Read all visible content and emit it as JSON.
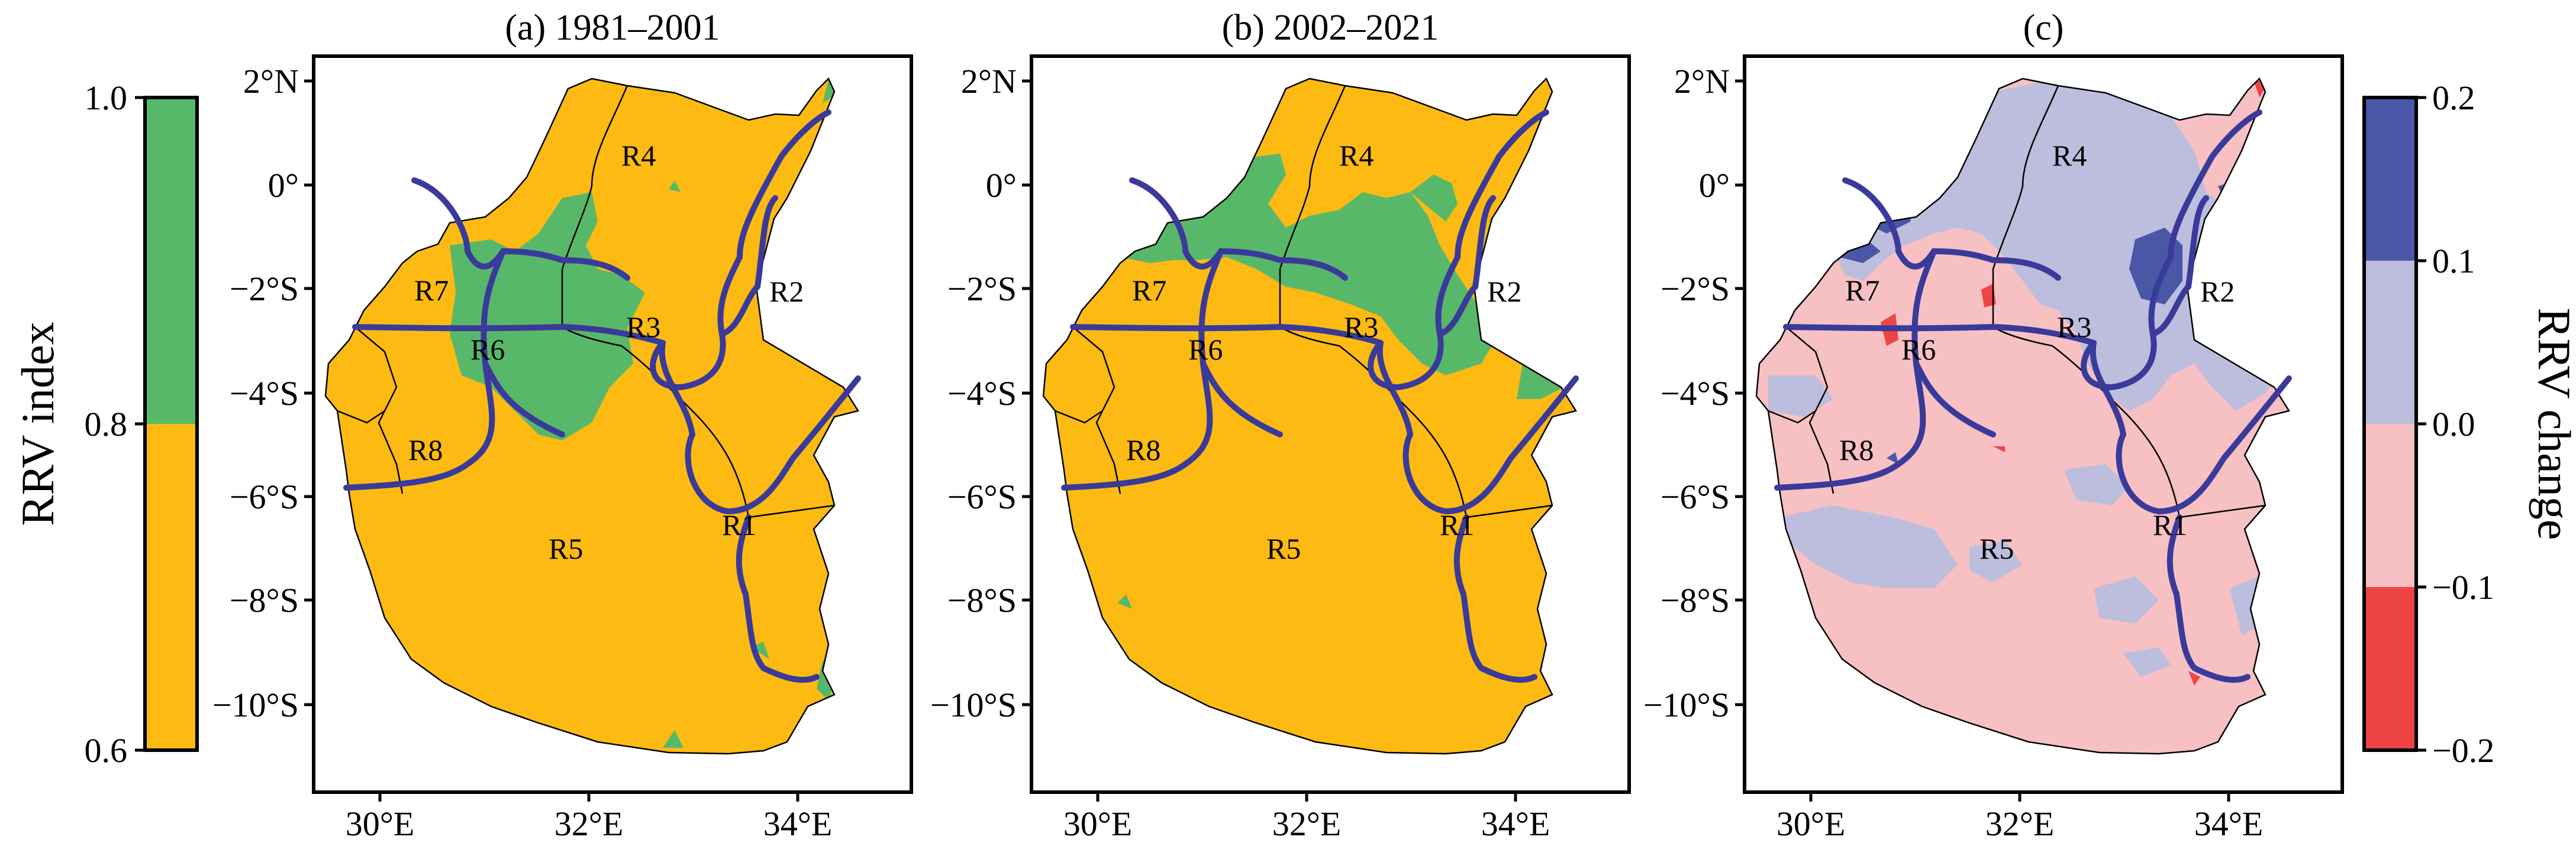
{
  "colors": {
    "rrv_low": "#fdba12",
    "rrv_high": "#58b86a",
    "change_neg_strong": "#ef4446",
    "change_neg": "#f7c0c3",
    "change_pos": "#bdbddd",
    "change_pos_strong": "#4a56a6",
    "boundary": "#3a3a9a",
    "frame": "#000000"
  },
  "left_colorbar": {
    "label": "RRV index",
    "ticks": [
      "1.0",
      "0.8",
      "0.6"
    ],
    "tick_values": [
      1.0,
      0.8,
      0.6
    ],
    "colors": [
      "#58b86a",
      "#fdba12"
    ]
  },
  "right_colorbar": {
    "label": "RRV change",
    "ticks": [
      "0.2",
      "0.1",
      "0.0",
      "−0.1",
      "−0.2"
    ],
    "tick_values": [
      0.2,
      0.1,
      0.0,
      -0.1,
      -0.2
    ],
    "colors": [
      "#4a56a6",
      "#bdbddd",
      "#f7c0c3",
      "#ef4446"
    ]
  },
  "panels": [
    {
      "id": "a",
      "title": "(a) 1981–2001",
      "y_ticks": [
        "2°N",
        "0°",
        "−2°S",
        "−4°S",
        "−6°S",
        "−8°S",
        "−10°S"
      ],
      "x_ticks": [
        "30°E",
        "32°E",
        "34°E"
      ],
      "regions": [
        "R1",
        "R2",
        "R3",
        "R4",
        "R5",
        "R6",
        "R7",
        "R8"
      ]
    },
    {
      "id": "b",
      "title": "(b) 2002–2021",
      "y_ticks": [
        "2°N",
        "0°",
        "−2°S",
        "−4°S",
        "−6°S",
        "−8°S",
        "−10°S"
      ],
      "x_ticks": [
        "30°E",
        "32°E",
        "34°E"
      ],
      "regions": [
        "R1",
        "R2",
        "R3",
        "R4",
        "R5",
        "R6",
        "R7",
        "R8"
      ]
    },
    {
      "id": "c",
      "title": "(c)",
      "y_ticks": [
        "2°N",
        "0°",
        "−2°S",
        "−4°S",
        "−6°S",
        "−8°S",
        "−10°S"
      ],
      "x_ticks": [
        "30°E",
        "32°E",
        "34°E"
      ],
      "regions": [
        "R1",
        "R2",
        "R3",
        "R4",
        "R5",
        "R6",
        "R7",
        "R8"
      ]
    }
  ],
  "map_extent": {
    "lon": [
      29.5,
      35.0
    ],
    "lat": [
      -11.5,
      2.2
    ]
  }
}
